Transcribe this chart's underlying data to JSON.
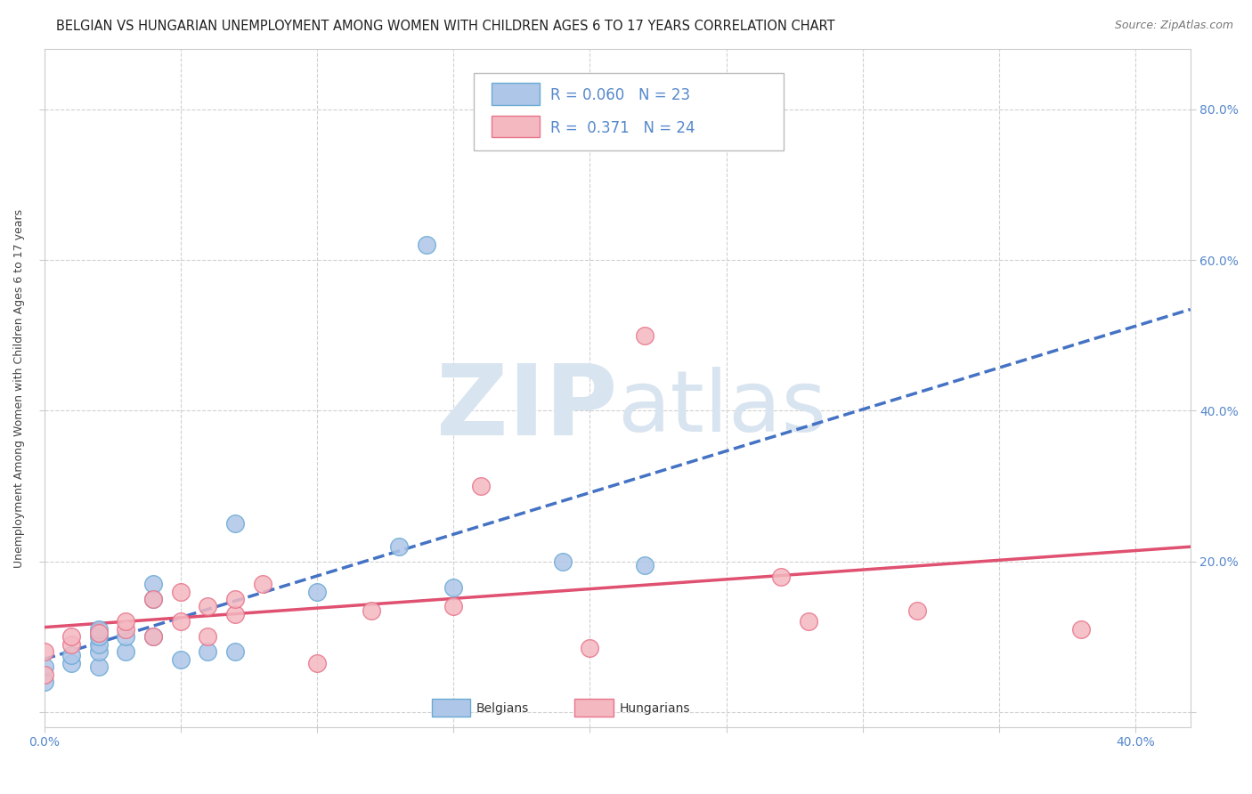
{
  "title": "BELGIAN VS HUNGARIAN UNEMPLOYMENT AMONG WOMEN WITH CHILDREN AGES 6 TO 17 YEARS CORRELATION CHART",
  "source": "Source: ZipAtlas.com",
  "ylabel": "Unemployment Among Women with Children Ages 6 to 17 years",
  "xlim": [
    0.0,
    0.42
  ],
  "ylim": [
    -0.02,
    0.88
  ],
  "ytick_positions": [
    0.0,
    0.2,
    0.4,
    0.6,
    0.8
  ],
  "ytick_labels": [
    "",
    "20.0%",
    "40.0%",
    "60.0%",
    "80.0%"
  ],
  "xtick_positions": [
    0.0,
    0.05,
    0.1,
    0.15,
    0.2,
    0.25,
    0.3,
    0.35,
    0.4
  ],
  "xtick_labels": [
    "0.0%",
    "",
    "",
    "",
    "",
    "",
    "",
    "",
    "40.0%"
  ],
  "belgian_color": "#aec6e8",
  "hungarian_color": "#f4b8c1",
  "belgian_edge_color": "#6aaad4",
  "hungarian_edge_color": "#e8748a",
  "belgian_line_color": "#4472c4",
  "hungarian_line_color": "#e05070",
  "watermark_color": "#d8e4f0",
  "background_color": "#ffffff",
  "grid_color": "#d0d0d0",
  "tick_color": "#5588cc",
  "belgians_x": [
    0.0,
    0.0,
    0.01,
    0.01,
    0.02,
    0.02,
    0.02,
    0.02,
    0.02,
    0.03,
    0.03,
    0.04,
    0.04,
    0.04,
    0.05,
    0.06,
    0.07,
    0.07,
    0.1,
    0.13,
    0.14,
    0.15,
    0.19,
    0.22
  ],
  "belgians_y": [
    0.04,
    0.06,
    0.065,
    0.075,
    0.06,
    0.08,
    0.09,
    0.1,
    0.11,
    0.08,
    0.1,
    0.1,
    0.15,
    0.17,
    0.07,
    0.08,
    0.08,
    0.25,
    0.16,
    0.22,
    0.62,
    0.165,
    0.2,
    0.195
  ],
  "hungarians_x": [
    0.0,
    0.0,
    0.01,
    0.01,
    0.02,
    0.03,
    0.03,
    0.04,
    0.04,
    0.05,
    0.05,
    0.06,
    0.06,
    0.07,
    0.07,
    0.08,
    0.1,
    0.12,
    0.15,
    0.16,
    0.2,
    0.22,
    0.27,
    0.28,
    0.32,
    0.38
  ],
  "hungarians_y": [
    0.05,
    0.08,
    0.09,
    0.1,
    0.105,
    0.11,
    0.12,
    0.1,
    0.15,
    0.12,
    0.16,
    0.1,
    0.14,
    0.13,
    0.15,
    0.17,
    0.065,
    0.135,
    0.14,
    0.3,
    0.085,
    0.5,
    0.18,
    0.12,
    0.135,
    0.11
  ],
  "title_fontsize": 10.5,
  "source_fontsize": 9,
  "axis_label_fontsize": 9,
  "tick_fontsize": 10,
  "legend_fontsize": 12
}
